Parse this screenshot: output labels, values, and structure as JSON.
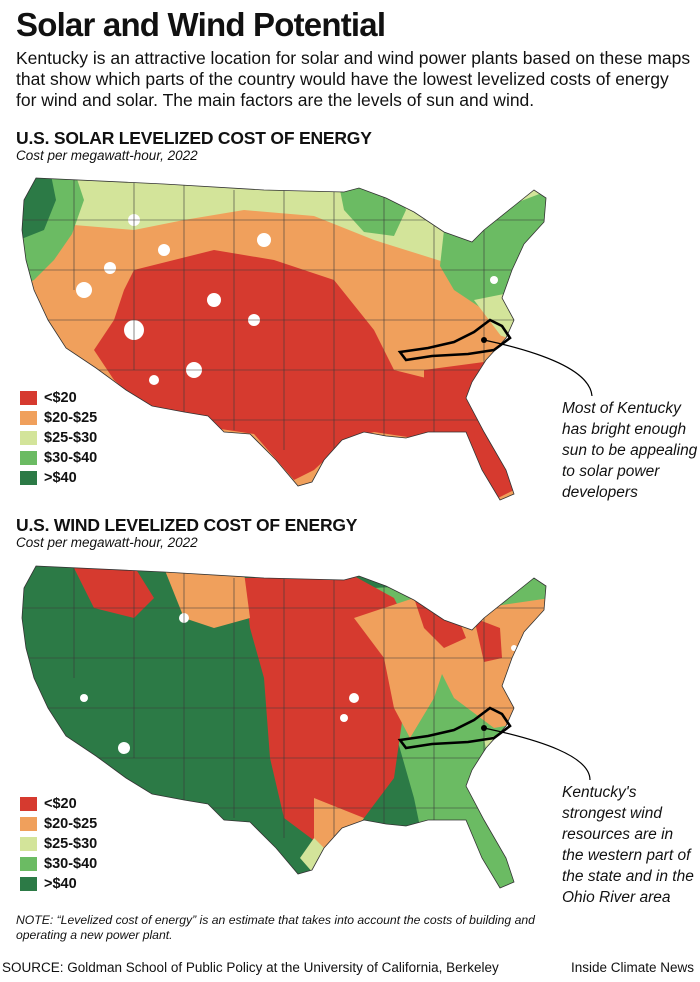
{
  "title": "Solar and Wind Potential",
  "intro": "Kentucky is an attractive location for solar and wind power plants based on these maps that show which parts of the country would have the lowest levelized costs of energy for wind and solar. The main factors are the levels of sun and wind.",
  "solar_map": {
    "heading": "U.S. SOLAR LEVELIZED COST OF ENERGY",
    "subheading": "Cost per megawatt-hour, 2022",
    "legend": [
      {
        "label": "<$20",
        "color": "#d63a2f"
      },
      {
        "label": "$20-$25",
        "color": "#f0a05c"
      },
      {
        "label": "$25-$30",
        "color": "#d3e49a"
      },
      {
        "label": "$30-$40",
        "color": "#6bbb63"
      },
      {
        "label": ">$40",
        "color": "#2c7a46"
      }
    ],
    "callout": "Most of Kentucky has bright enough sun to be appealing to solar power developers"
  },
  "wind_map": {
    "heading": "U.S. WIND LEVELIZED COST OF ENERGY",
    "subheading": "Cost per megawatt-hour, 2022",
    "legend": [
      {
        "label": "<$20",
        "color": "#d63a2f"
      },
      {
        "label": "$20-$25",
        "color": "#f0a05c"
      },
      {
        "label": "$25-$30",
        "color": "#d3e49a"
      },
      {
        "label": "$30-$40",
        "color": "#6bbb63"
      },
      {
        "label": ">$40",
        "color": "#2c7a46"
      }
    ],
    "callout": "Kentucky's strongest wind resources are in the western part of the state and in the Ohio River area"
  },
  "note": "NOTE: “Levelized cost of energy” is an estimate that takes into account the costs of building and operating a new power plant.",
  "source": "SOURCE: Goldman School of Public Policy at the University of California, Berkeley",
  "credit": "Inside Climate News"
}
